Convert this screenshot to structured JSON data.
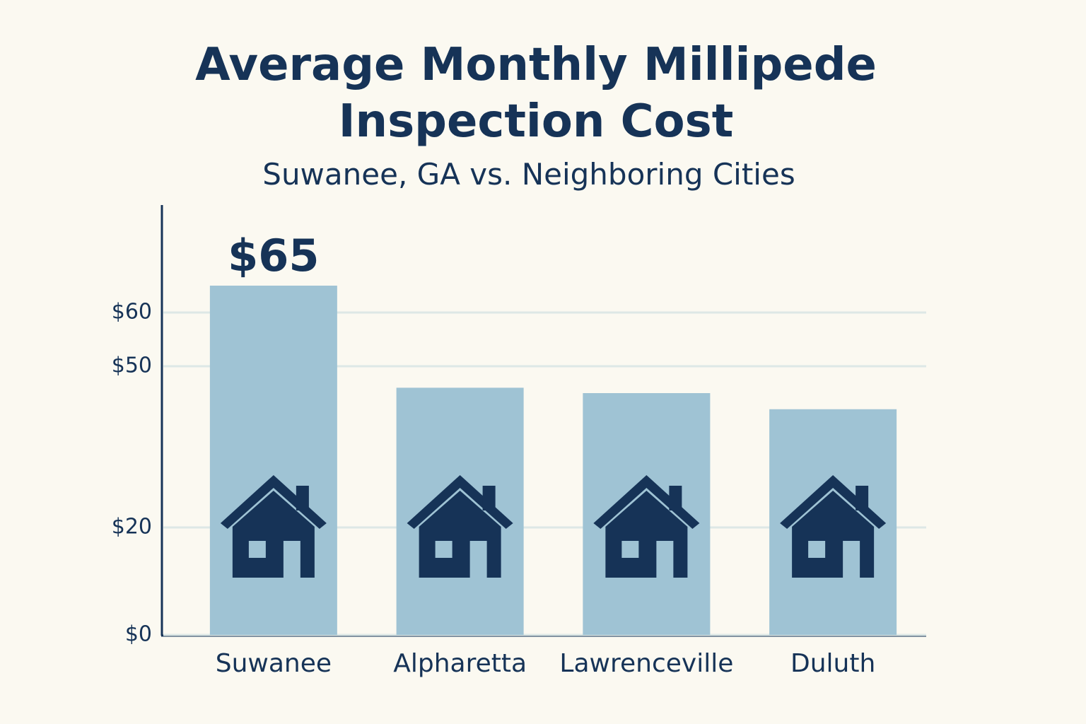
{
  "chart_data": {
    "type": "bar",
    "title": "Average Monthly Millipede Inspection Cost",
    "subtitle": "Suwanee, GA vs. Neighboring Cities",
    "categories": [
      "Suwanee",
      "Alpharetta",
      "Lawrenceville",
      "Duluth"
    ],
    "values": [
      65,
      46,
      45,
      42
    ],
    "value_labels": [
      "$65",
      null,
      null,
      null
    ],
    "color": "#9fc3d4",
    "ylim": [
      0,
      80
    ],
    "yticks": [
      {
        "value": 0,
        "label": "$0"
      },
      {
        "value": 20,
        "label": "$20"
      },
      {
        "value": 50,
        "label": "$50"
      },
      {
        "value": 60,
        "label": "$60"
      }
    ],
    "grid": true
  }
}
